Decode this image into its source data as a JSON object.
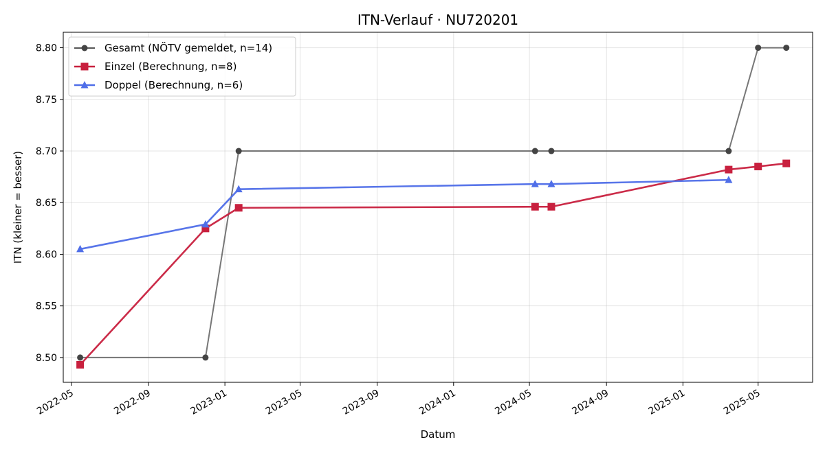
{
  "chart_data": {
    "type": "line",
    "title": "ITN-Verlauf · NU720201",
    "xlabel": "Datum",
    "ylabel": "ITN  (kleiner = besser)",
    "xlim": [
      "2022-04-18",
      "2025-07-27"
    ],
    "ylim": [
      8.476,
      8.815
    ],
    "x_ticks": [
      {
        "date": "2022-05-01",
        "label": "2022-05"
      },
      {
        "date": "2022-09-01",
        "label": "2022-09"
      },
      {
        "date": "2023-01-01",
        "label": "2023-01"
      },
      {
        "date": "2023-05-01",
        "label": "2023-05"
      },
      {
        "date": "2023-09-01",
        "label": "2023-09"
      },
      {
        "date": "2024-01-01",
        "label": "2024-01"
      },
      {
        "date": "2024-05-01",
        "label": "2024-05"
      },
      {
        "date": "2024-09-01",
        "label": "2024-09"
      },
      {
        "date": "2025-01-01",
        "label": "2025-01"
      },
      {
        "date": "2025-05-01",
        "label": "2025-05"
      }
    ],
    "y_ticks": [
      {
        "value": 8.5,
        "label": "8.50"
      },
      {
        "value": 8.55,
        "label": "8.55"
      },
      {
        "value": 8.6,
        "label": "8.60"
      },
      {
        "value": 8.65,
        "label": "8.65"
      },
      {
        "value": 8.7,
        "label": "8.70"
      },
      {
        "value": 8.75,
        "label": "8.75"
      },
      {
        "value": 8.8,
        "label": "8.80"
      }
    ],
    "grid": true,
    "legend_position": "top-left",
    "series": [
      {
        "name": "Gesamt (NÖTV gemeldet, n=14)",
        "color": "#555555",
        "marker": "circle",
        "points": [
          {
            "x": "2022-05-15",
            "y": 8.5
          },
          {
            "x": "2022-12-01",
            "y": 8.5
          },
          {
            "x": "2023-01-23",
            "y": 8.7
          },
          {
            "x": "2024-05-10",
            "y": 8.7
          },
          {
            "x": "2024-06-05",
            "y": 8.7
          },
          {
            "x": "2025-03-15",
            "y": 8.7
          },
          {
            "x": "2025-05-01",
            "y": 8.8
          },
          {
            "x": "2025-06-15",
            "y": 8.8
          }
        ]
      },
      {
        "name": "Einzel (Berechnung, n=8)",
        "color": "#c8203e",
        "marker": "square",
        "points": [
          {
            "x": "2022-05-15",
            "y": 8.493
          },
          {
            "x": "2022-12-01",
            "y": 8.625
          },
          {
            "x": "2023-01-23",
            "y": 8.645
          },
          {
            "x": "2024-05-10",
            "y": 8.646
          },
          {
            "x": "2024-06-05",
            "y": 8.646
          },
          {
            "x": "2025-03-15",
            "y": 8.682
          },
          {
            "x": "2025-05-01",
            "y": 8.685
          },
          {
            "x": "2025-06-15",
            "y": 8.688
          }
        ]
      },
      {
        "name": "Doppel (Berechnung, n=6)",
        "color": "#4f6ee8",
        "marker": "triangle",
        "points": [
          {
            "x": "2022-05-15",
            "y": 8.605
          },
          {
            "x": "2022-12-01",
            "y": 8.629
          },
          {
            "x": "2023-01-23",
            "y": 8.663
          },
          {
            "x": "2024-05-10",
            "y": 8.668
          },
          {
            "x": "2024-06-05",
            "y": 8.668
          },
          {
            "x": "2025-03-15",
            "y": 8.672
          }
        ]
      }
    ]
  }
}
